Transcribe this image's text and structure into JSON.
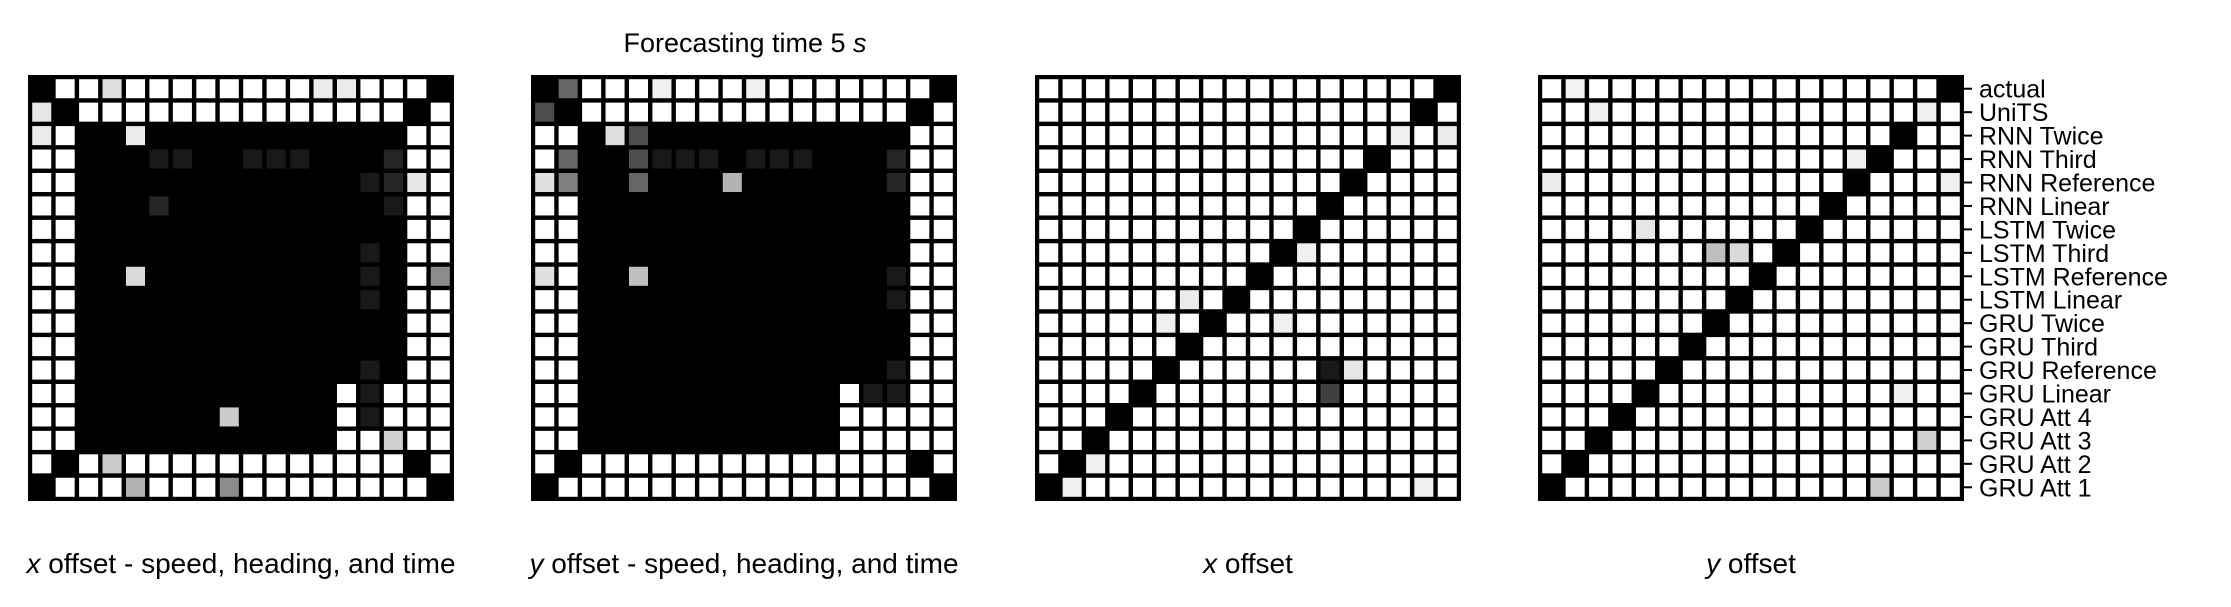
{
  "chart_data": {
    "type": "heatmap",
    "title": "Forecasting time 5 s",
    "title_parts": [
      "Forecasting time 5 ",
      "s"
    ],
    "colormap": "gray_r",
    "value_range": [
      0,
      1
    ],
    "grid": true,
    "row_labels": [
      "actual",
      "UniTS",
      "RNN Twice",
      "RNN Third",
      "RNN Reference",
      "RNN Linear",
      "LSTM Twice",
      "LSTM Third",
      "LSTM Reference",
      "LSTM Linear",
      "GRU Twice",
      "GRU Third",
      "GRU Reference",
      "GRU Linear",
      "GRU Att 4",
      "GRU Att 3",
      "GRU Att 2",
      "GRU Att 1"
    ],
    "panels": [
      {
        "xlabel": "x offset - speed, heading, and time",
        "xlabel_var": "x",
        "xlabel_rest": " offset - speed, heading, and time",
        "defaults": {
          "values": [
            0,
            1
          ],
          "groups": [
            {
              "rows": [
                2,
                3,
                4,
                5
              ],
              "cols": [
                5,
                6,
                7,
                8,
                9,
                10,
                11,
                12
              ],
              "value": 1
            },
            {
              "rows": [
                7,
                8,
                9,
                10
              ],
              "cols": [
                5,
                6,
                7,
                8,
                9,
                10,
                11,
                12
              ],
              "value": 1
            },
            {
              "rows": [
                12,
                13,
                14,
                15
              ],
              "cols": [
                5,
                6,
                7,
                8,
                9,
                10,
                11,
                12
              ],
              "value": 1
            },
            {
              "rows": [
                2,
                3,
                4,
                5
              ],
              "cols": [
                2,
                3,
                4,
                5
              ],
              "value": 1
            },
            {
              "rows": [
                7,
                8,
                9,
                10
              ],
              "cols": [
                2,
                3,
                4,
                5
              ],
              "value": 1
            },
            {
              "rows": [
                12,
                13,
                14,
                15
              ],
              "cols": [
                2,
                3,
                4,
                5
              ],
              "value": 1
            }
          ]
        },
        "cells": [
          {
            "row": 0,
            "col": 0,
            "value": 1
          },
          {
            "row": 1,
            "col": 1,
            "value": 1
          },
          {
            "row": 2,
            "col": 2,
            "value": 1
          },
          {
            "row": 3,
            "col": 3,
            "value": 1
          },
          {
            "row": 6,
            "col": 6,
            "value": 1
          },
          {
            "row": 11,
            "col": 11,
            "value": 1
          },
          {
            "row": 16,
            "col": 16,
            "value": 1
          },
          {
            "row": 17,
            "col": 17,
            "value": 1
          },
          {
            "row": 17,
            "col": 4,
            "value": 0.3
          },
          {
            "row": 17,
            "col": 8,
            "value": 0.45
          },
          {
            "row": 16,
            "col": 3,
            "value": 0.2
          },
          {
            "row": 8,
            "col": 4,
            "value": 0.15
          },
          {
            "row": 8,
            "col": 17,
            "value": 0.45
          },
          {
            "row": 4,
            "col": 15,
            "value": 0.85
          },
          {
            "row": 4,
            "col": 14,
            "value": 0.9
          },
          {
            "row": 3,
            "col": 14,
            "value": 0.9
          },
          {
            "row": 2,
            "col": 15,
            "value": 0.95
          },
          {
            "row": 3,
            "col": 15,
            "value": 0.85
          },
          {
            "row": 5,
            "col": 15,
            "value": 0.9
          },
          {
            "row": 3,
            "col": 5,
            "value": 0.9
          },
          {
            "row": 3,
            "col": 6,
            "value": 0.9
          },
          {
            "row": 3,
            "col": 9,
            "value": 0.9
          },
          {
            "row": 3,
            "col": 10,
            "value": 0.9
          },
          {
            "row": 3,
            "col": 11,
            "value": 0.9
          },
          {
            "row": 9,
            "col": 14,
            "value": 0.9
          },
          {
            "row": 8,
            "col": 14,
            "value": 0.9
          },
          {
            "row": 7,
            "col": 14,
            "value": 0.9
          },
          {
            "row": 12,
            "col": 14,
            "value": 0.9
          },
          {
            "row": 13,
            "col": 14,
            "value": 0.9
          },
          {
            "row": 14,
            "col": 14,
            "value": 0.9
          },
          {
            "row": 5,
            "col": 5,
            "value": 0.85
          },
          {
            "row": 4,
            "col": 13,
            "value": 0.9
          },
          {
            "row": 4,
            "col": 12,
            "value": 1
          },
          {
            "row": 4,
            "col": 16,
            "value": 0.1
          },
          {
            "row": 2,
            "col": 4,
            "value": 0.08
          },
          {
            "row": 1,
            "col": 0,
            "value": 0.1
          },
          {
            "row": 2,
            "col": 0,
            "value": 0.08
          },
          {
            "row": 0,
            "col": 3,
            "value": 0.12
          },
          {
            "row": 14,
            "col": 8,
            "value": 0.2
          },
          {
            "row": 15,
            "col": 15,
            "value": 0.18
          },
          {
            "row": 1,
            "col": 16,
            "value": 0.18
          },
          {
            "row": 0,
            "col": 12,
            "value": 0.08
          },
          {
            "row": 0,
            "col": 13,
            "value": 0.08
          }
        ]
      },
      {
        "xlabel": "y offset - speed, heading, and time",
        "xlabel_var": "y",
        "xlabel_rest": " offset - speed, heading, and time",
        "cells": [
          {
            "row": 0,
            "col": 0,
            "value": 1
          },
          {
            "row": 1,
            "col": 1,
            "value": 1
          },
          {
            "row": 4,
            "col": 2,
            "value": 1
          },
          {
            "row": 4,
            "col": 3,
            "value": 1
          },
          {
            "row": 3,
            "col": 2,
            "value": 1
          },
          {
            "row": 3,
            "col": 3,
            "value": 1
          },
          {
            "row": 2,
            "col": 2,
            "value": 1
          },
          {
            "row": 6,
            "col": 6,
            "value": 1
          },
          {
            "row": 11,
            "col": 11,
            "value": 1
          },
          {
            "row": 16,
            "col": 16,
            "value": 1
          },
          {
            "row": 17,
            "col": 17,
            "value": 1
          },
          {
            "row": 1,
            "col": 0,
            "value": 0.7
          },
          {
            "row": 0,
            "col": 1,
            "value": 0.6
          },
          {
            "row": 3,
            "col": 1,
            "value": 0.6
          },
          {
            "row": 4,
            "col": 1,
            "value": 0.5
          },
          {
            "row": 3,
            "col": 4,
            "value": 0.7
          },
          {
            "row": 2,
            "col": 4,
            "value": 0.7
          },
          {
            "row": 4,
            "col": 4,
            "value": 0.6
          },
          {
            "row": 4,
            "col": 8,
            "value": 0.3
          },
          {
            "row": 8,
            "col": 4,
            "value": 0.25
          },
          {
            "row": 4,
            "col": 15,
            "value": 0.85
          },
          {
            "row": 3,
            "col": 15,
            "value": 0.85
          },
          {
            "row": 9,
            "col": 15,
            "value": 0.9
          },
          {
            "row": 8,
            "col": 15,
            "value": 0.9
          },
          {
            "row": 12,
            "col": 15,
            "value": 0.9
          },
          {
            "row": 13,
            "col": 15,
            "value": 0.9
          },
          {
            "row": 13,
            "col": 14,
            "value": 0.9
          },
          {
            "row": 3,
            "col": 5,
            "value": 0.9
          },
          {
            "row": 3,
            "col": 6,
            "value": 0.9
          },
          {
            "row": 3,
            "col": 7,
            "value": 0.9
          },
          {
            "row": 3,
            "col": 9,
            "value": 0.9
          },
          {
            "row": 3,
            "col": 10,
            "value": 0.9
          },
          {
            "row": 3,
            "col": 11,
            "value": 0.9
          },
          {
            "row": 2,
            "col": 3,
            "value": 0.12
          },
          {
            "row": 4,
            "col": 0,
            "value": 0.12
          },
          {
            "row": 8,
            "col": 0,
            "value": 0.12
          },
          {
            "row": 0,
            "col": 5,
            "value": 0.06
          },
          {
            "row": 0,
            "col": 9,
            "value": 0.06
          }
        ],
        "defaults": {
          "values": [
            0,
            1
          ],
          "groups": [
            {
              "rows": [
                2,
                3,
                4,
                5
              ],
              "cols": [
                5,
                6,
                7,
                8,
                9,
                10,
                11,
                12
              ],
              "value": 1
            },
            {
              "rows": [
                7,
                8,
                9,
                10
              ],
              "cols": [
                5,
                6,
                7,
                8,
                9,
                10,
                11,
                12
              ],
              "value": 1
            },
            {
              "rows": [
                12,
                13,
                14,
                15
              ],
              "cols": [
                5,
                6,
                7,
                8,
                9,
                10,
                11,
                12
              ],
              "value": 1
            },
            {
              "rows": [
                2,
                3,
                4,
                5
              ],
              "cols": [
                2,
                3,
                4,
                5
              ],
              "value": 1
            },
            {
              "rows": [
                7,
                8,
                9,
                10
              ],
              "cols": [
                2,
                3,
                4,
                5
              ],
              "value": 1
            },
            {
              "rows": [
                12,
                13,
                14,
                15
              ],
              "cols": [
                2,
                3,
                4,
                5
              ],
              "value": 1
            }
          ]
        }
      },
      {
        "xlabel": "x offset",
        "xlabel_var": "x",
        "xlabel_rest": " offset",
        "diagonal": 1,
        "cells": [
          {
            "row": 13,
            "col": 12,
            "value": 0.75
          },
          {
            "row": 12,
            "col": 12,
            "value": 0.9
          },
          {
            "row": 12,
            "col": 13,
            "value": 0.1
          },
          {
            "row": 9,
            "col": 6,
            "value": 0.08
          },
          {
            "row": 17,
            "col": 1,
            "value": 0.06
          },
          {
            "row": 17,
            "col": 16,
            "value": 0.06
          },
          {
            "row": 2,
            "col": 17,
            "value": 0.08
          },
          {
            "row": 2,
            "col": 15,
            "value": 0.06
          },
          {
            "row": 10,
            "col": 5,
            "value": 0.06
          },
          {
            "row": 10,
            "col": 10,
            "value": 0.06
          },
          {
            "row": 16,
            "col": 2,
            "value": 0.06
          },
          {
            "row": 7,
            "col": 11,
            "value": 0.06
          }
        ]
      },
      {
        "xlabel": "y offset",
        "xlabel_var": "y",
        "xlabel_rest": " offset",
        "diagonal": 1,
        "cells": [
          {
            "row": 7,
            "col": 7,
            "value": 0.25
          },
          {
            "row": 7,
            "col": 8,
            "value": 0.15
          },
          {
            "row": 17,
            "col": 14,
            "value": 0.2
          },
          {
            "row": 15,
            "col": 16,
            "value": 0.18
          },
          {
            "row": 6,
            "col": 4,
            "value": 0.1
          },
          {
            "row": 3,
            "col": 13,
            "value": 0.06
          },
          {
            "row": 4,
            "col": 0,
            "value": 0.08
          },
          {
            "row": 4,
            "col": 17,
            "value": 0.06
          },
          {
            "row": 1,
            "col": 16,
            "value": 0.06
          },
          {
            "row": 1,
            "col": 2,
            "value": 0.06
          },
          {
            "row": 0,
            "col": 1,
            "value": 0.05
          },
          {
            "row": 13,
            "col": 15,
            "value": 0.06
          }
        ]
      }
    ]
  }
}
